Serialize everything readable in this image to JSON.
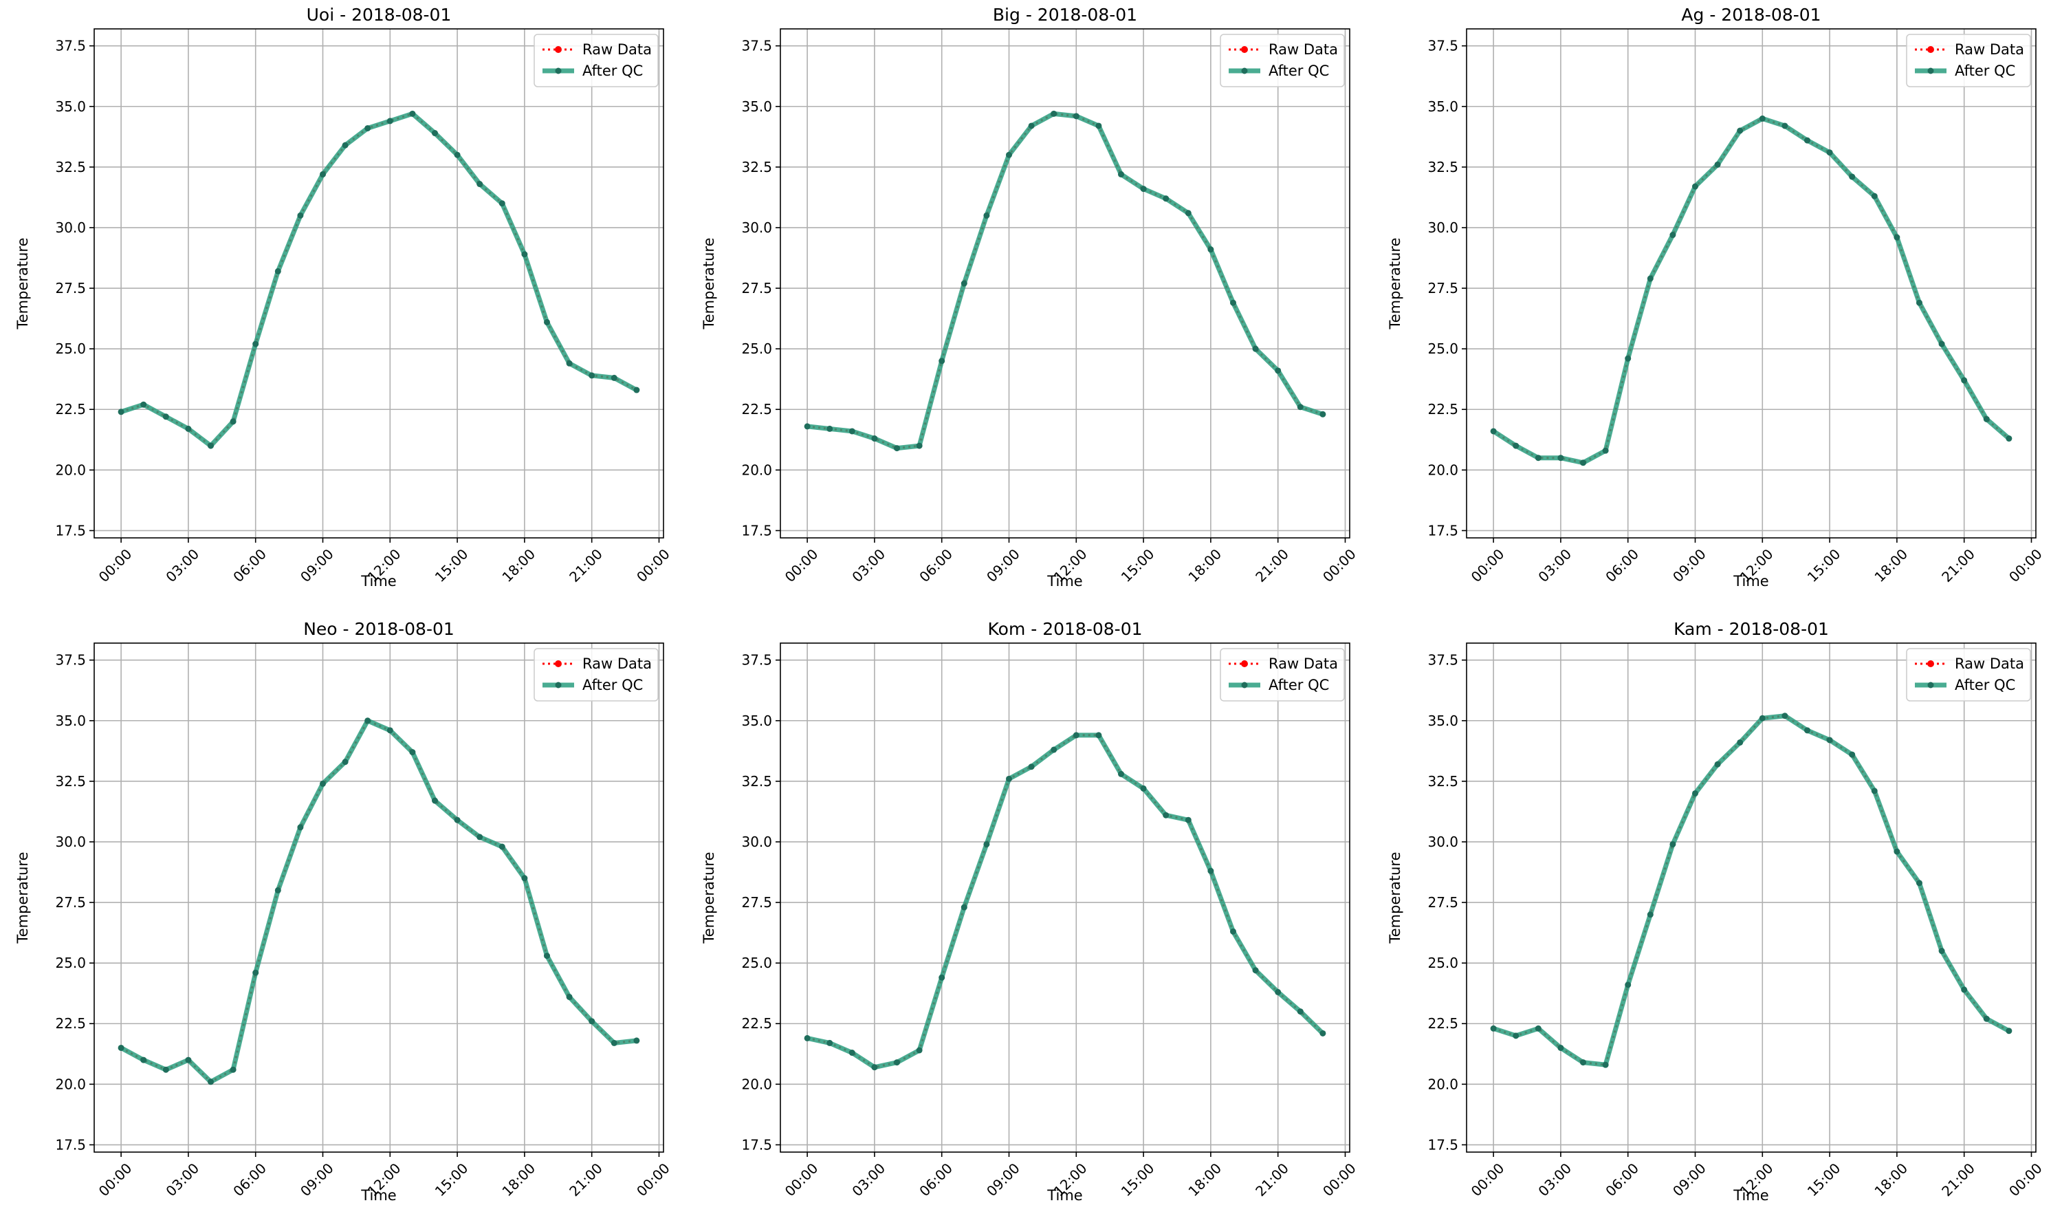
{
  "chart_data": [
    {
      "type": "line",
      "title": "Uoi - 2018-08-01",
      "xlabel": "Time",
      "ylabel": "Temperature",
      "x": [
        "00:00",
        "01:00",
        "02:00",
        "03:00",
        "04:00",
        "05:00",
        "06:00",
        "07:00",
        "08:00",
        "09:00",
        "10:00",
        "11:00",
        "12:00",
        "13:00",
        "14:00",
        "15:00",
        "16:00",
        "17:00",
        "18:00",
        "19:00",
        "20:00",
        "21:00",
        "22:00",
        "23:00"
      ],
      "xticks": [
        "00:00",
        "03:00",
        "06:00",
        "09:00",
        "12:00",
        "15:00",
        "18:00",
        "21:00",
        "00:00"
      ],
      "xlim": [
        -1.2,
        24.2
      ],
      "ylim": [
        17.2,
        38.2
      ],
      "yticks": [
        "17.5",
        "20.0",
        "22.5",
        "25.0",
        "27.5",
        "30.0",
        "32.5",
        "35.0",
        "37.5"
      ],
      "grid": true,
      "legend": "top-right",
      "series": [
        {
          "name": "Raw Data",
          "color": "#ff0000",
          "style": "dotted",
          "values": [
            22.4,
            22.7,
            22.2,
            21.7,
            21.0,
            22.0,
            25.2,
            28.2,
            30.5,
            32.2,
            33.4,
            34.1,
            34.4,
            34.7,
            33.9,
            33.0,
            31.8,
            31.0,
            28.9,
            26.1,
            24.4,
            23.9,
            23.8,
            23.3
          ]
        },
        {
          "name": "After QC",
          "color": "#2a9d7f",
          "style": "solid",
          "values": [
            22.4,
            22.7,
            22.2,
            21.7,
            21.0,
            22.0,
            25.2,
            28.2,
            30.5,
            32.2,
            33.4,
            34.1,
            34.4,
            34.7,
            33.9,
            33.0,
            31.8,
            31.0,
            28.9,
            26.1,
            24.4,
            23.9,
            23.8,
            23.3
          ]
        }
      ]
    },
    {
      "type": "line",
      "title": "Big - 2018-08-01",
      "xlabel": "Time",
      "ylabel": "Temperature",
      "x": [
        "00:00",
        "01:00",
        "02:00",
        "03:00",
        "04:00",
        "05:00",
        "06:00",
        "07:00",
        "08:00",
        "09:00",
        "10:00",
        "11:00",
        "12:00",
        "13:00",
        "14:00",
        "15:00",
        "16:00",
        "17:00",
        "18:00",
        "19:00",
        "20:00",
        "21:00",
        "22:00",
        "23:00"
      ],
      "xticks": [
        "00:00",
        "03:00",
        "06:00",
        "09:00",
        "12:00",
        "15:00",
        "18:00",
        "21:00",
        "00:00"
      ],
      "xlim": [
        -1.2,
        24.2
      ],
      "ylim": [
        17.2,
        38.2
      ],
      "yticks": [
        "17.5",
        "20.0",
        "22.5",
        "25.0",
        "27.5",
        "30.0",
        "32.5",
        "35.0",
        "37.5"
      ],
      "grid": true,
      "legend": "top-right",
      "series": [
        {
          "name": "Raw Data",
          "color": "#ff0000",
          "style": "dotted",
          "values": [
            21.8,
            21.7,
            21.6,
            21.3,
            20.9,
            21.0,
            24.5,
            27.7,
            30.5,
            33.0,
            34.2,
            34.7,
            34.6,
            34.2,
            32.2,
            31.6,
            31.2,
            30.6,
            29.1,
            26.9,
            25.0,
            24.1,
            22.6,
            22.3
          ]
        },
        {
          "name": "After QC",
          "color": "#2a9d7f",
          "style": "solid",
          "values": [
            21.8,
            21.7,
            21.6,
            21.3,
            20.9,
            21.0,
            24.5,
            27.7,
            30.5,
            33.0,
            34.2,
            34.7,
            34.6,
            34.2,
            32.2,
            31.6,
            31.2,
            30.6,
            29.1,
            26.9,
            25.0,
            24.1,
            22.6,
            22.3
          ]
        }
      ]
    },
    {
      "type": "line",
      "title": "Ag - 2018-08-01",
      "xlabel": "Time",
      "ylabel": "Temperature",
      "x": [
        "00:00",
        "01:00",
        "02:00",
        "03:00",
        "04:00",
        "05:00",
        "06:00",
        "07:00",
        "08:00",
        "09:00",
        "10:00",
        "11:00",
        "12:00",
        "13:00",
        "14:00",
        "15:00",
        "16:00",
        "17:00",
        "18:00",
        "19:00",
        "20:00",
        "21:00",
        "22:00",
        "23:00"
      ],
      "xticks": [
        "00:00",
        "03:00",
        "06:00",
        "09:00",
        "12:00",
        "15:00",
        "18:00",
        "21:00",
        "00:00"
      ],
      "xlim": [
        -1.2,
        24.2
      ],
      "ylim": [
        17.2,
        38.2
      ],
      "yticks": [
        "17.5",
        "20.0",
        "22.5",
        "25.0",
        "27.5",
        "30.0",
        "32.5",
        "35.0",
        "37.5"
      ],
      "grid": true,
      "legend": "top-right",
      "series": [
        {
          "name": "Raw Data",
          "color": "#ff0000",
          "style": "dotted",
          "values": [
            21.6,
            21.0,
            20.5,
            20.5,
            20.3,
            20.8,
            24.6,
            27.9,
            29.7,
            31.7,
            32.6,
            34.0,
            34.5,
            34.2,
            33.6,
            33.1,
            32.1,
            31.3,
            29.6,
            26.9,
            25.2,
            23.7,
            22.1,
            21.3
          ]
        },
        {
          "name": "After QC",
          "color": "#2a9d7f",
          "style": "solid",
          "values": [
            21.6,
            21.0,
            20.5,
            20.5,
            20.3,
            20.8,
            24.6,
            27.9,
            29.7,
            31.7,
            32.6,
            34.0,
            34.5,
            34.2,
            33.6,
            33.1,
            32.1,
            31.3,
            29.6,
            26.9,
            25.2,
            23.7,
            22.1,
            21.3
          ]
        }
      ]
    },
    {
      "type": "line",
      "title": "Neo - 2018-08-01",
      "xlabel": "Time",
      "ylabel": "Temperature",
      "x": [
        "00:00",
        "01:00",
        "02:00",
        "03:00",
        "04:00",
        "05:00",
        "06:00",
        "07:00",
        "08:00",
        "09:00",
        "10:00",
        "11:00",
        "12:00",
        "13:00",
        "14:00",
        "15:00",
        "16:00",
        "17:00",
        "18:00",
        "19:00",
        "20:00",
        "21:00",
        "22:00",
        "23:00"
      ],
      "xticks": [
        "00:00",
        "03:00",
        "06:00",
        "09:00",
        "12:00",
        "15:00",
        "18:00",
        "21:00",
        "00:00"
      ],
      "xlim": [
        -1.2,
        24.2
      ],
      "ylim": [
        17.2,
        38.2
      ],
      "yticks": [
        "17.5",
        "20.0",
        "22.5",
        "25.0",
        "27.5",
        "30.0",
        "32.5",
        "35.0",
        "37.5"
      ],
      "grid": true,
      "legend": "top-right",
      "series": [
        {
          "name": "Raw Data",
          "color": "#ff0000",
          "style": "dotted",
          "values": [
            21.5,
            21.0,
            20.6,
            21.0,
            20.1,
            20.6,
            24.6,
            28.0,
            30.6,
            32.4,
            33.3,
            35.0,
            34.6,
            33.7,
            31.7,
            30.9,
            30.2,
            29.8,
            28.5,
            25.3,
            23.6,
            22.6,
            21.7,
            21.8
          ]
        },
        {
          "name": "After QC",
          "color": "#2a9d7f",
          "style": "solid",
          "values": [
            21.5,
            21.0,
            20.6,
            21.0,
            20.1,
            20.6,
            24.6,
            28.0,
            30.6,
            32.4,
            33.3,
            35.0,
            34.6,
            33.7,
            31.7,
            30.9,
            30.2,
            29.8,
            28.5,
            25.3,
            23.6,
            22.6,
            21.7,
            21.8
          ]
        }
      ]
    },
    {
      "type": "line",
      "title": "Kom - 2018-08-01",
      "xlabel": "Time",
      "ylabel": "Temperature",
      "x": [
        "00:00",
        "01:00",
        "02:00",
        "03:00",
        "04:00",
        "05:00",
        "06:00",
        "07:00",
        "08:00",
        "09:00",
        "10:00",
        "11:00",
        "12:00",
        "13:00",
        "14:00",
        "15:00",
        "16:00",
        "17:00",
        "18:00",
        "19:00",
        "20:00",
        "21:00",
        "22:00",
        "23:00"
      ],
      "xticks": [
        "00:00",
        "03:00",
        "06:00",
        "09:00",
        "12:00",
        "15:00",
        "18:00",
        "21:00",
        "00:00"
      ],
      "xlim": [
        -1.2,
        24.2
      ],
      "ylim": [
        17.2,
        38.2
      ],
      "yticks": [
        "17.5",
        "20.0",
        "22.5",
        "25.0",
        "27.5",
        "30.0",
        "32.5",
        "35.0",
        "37.5"
      ],
      "grid": true,
      "legend": "top-right",
      "series": [
        {
          "name": "Raw Data",
          "color": "#ff0000",
          "style": "dotted",
          "values": [
            21.9,
            21.7,
            21.3,
            20.7,
            20.9,
            21.4,
            24.4,
            27.3,
            29.9,
            32.6,
            33.1,
            33.8,
            34.4,
            34.4,
            32.8,
            32.2,
            31.1,
            30.9,
            28.8,
            26.3,
            24.7,
            23.8,
            23.0,
            22.1
          ]
        },
        {
          "name": "After QC",
          "color": "#2a9d7f",
          "style": "solid",
          "values": [
            21.9,
            21.7,
            21.3,
            20.7,
            20.9,
            21.4,
            24.4,
            27.3,
            29.9,
            32.6,
            33.1,
            33.8,
            34.4,
            34.4,
            32.8,
            32.2,
            31.1,
            30.9,
            28.8,
            26.3,
            24.7,
            23.8,
            23.0,
            22.1
          ]
        }
      ]
    },
    {
      "type": "line",
      "title": "Kam - 2018-08-01",
      "xlabel": "Time",
      "ylabel": "Temperature",
      "x": [
        "00:00",
        "01:00",
        "02:00",
        "03:00",
        "04:00",
        "05:00",
        "06:00",
        "07:00",
        "08:00",
        "09:00",
        "10:00",
        "11:00",
        "12:00",
        "13:00",
        "14:00",
        "15:00",
        "16:00",
        "17:00",
        "18:00",
        "19:00",
        "20:00",
        "21:00",
        "22:00",
        "23:00"
      ],
      "xticks": [
        "00:00",
        "03:00",
        "06:00",
        "09:00",
        "12:00",
        "15:00",
        "18:00",
        "21:00",
        "00:00"
      ],
      "xlim": [
        -1.2,
        24.2
      ],
      "ylim": [
        17.2,
        38.2
      ],
      "yticks": [
        "17.5",
        "20.0",
        "22.5",
        "25.0",
        "27.5",
        "30.0",
        "32.5",
        "35.0",
        "37.5"
      ],
      "grid": true,
      "legend": "top-right",
      "series": [
        {
          "name": "Raw Data",
          "color": "#ff0000",
          "style": "dotted",
          "values": [
            22.3,
            22.0,
            22.3,
            21.5,
            20.9,
            20.8,
            24.1,
            27.0,
            29.9,
            32.0,
            33.2,
            34.1,
            35.1,
            35.2,
            34.6,
            34.2,
            33.6,
            32.1,
            29.6,
            28.3,
            25.5,
            23.9,
            22.7,
            22.2
          ]
        },
        {
          "name": "After QC",
          "color": "#2a9d7f",
          "style": "solid",
          "values": [
            22.3,
            22.0,
            22.3,
            21.5,
            20.9,
            20.8,
            24.1,
            27.0,
            29.9,
            32.0,
            33.2,
            34.1,
            35.1,
            35.2,
            34.6,
            34.2,
            33.6,
            32.1,
            29.6,
            28.3,
            25.5,
            23.9,
            22.7,
            22.2
          ]
        }
      ]
    }
  ]
}
